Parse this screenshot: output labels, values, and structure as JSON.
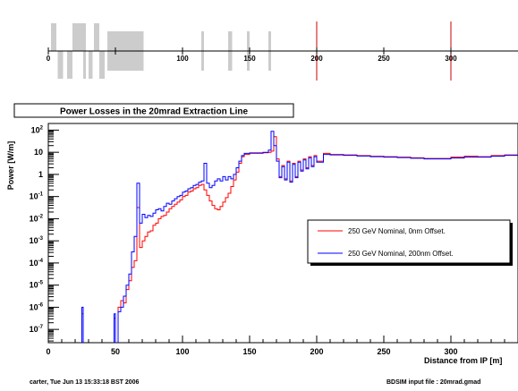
{
  "chart_data": [
    {
      "type": "diagram",
      "x_axis_range": [
        0,
        350
      ],
      "tick_labels": [
        "0",
        "100",
        "150",
        "200",
        "250",
        "300"
      ],
      "elements": [
        {
          "start": 2,
          "end": 6,
          "side": "up"
        },
        {
          "start": 7,
          "end": 11,
          "side": "down"
        },
        {
          "start": 14,
          "end": 18,
          "side": "down"
        },
        {
          "start": 18,
          "end": 23,
          "side": "up"
        },
        {
          "start": 23,
          "end": 28,
          "side": "up"
        },
        {
          "start": 26,
          "end": 28,
          "side": "down"
        },
        {
          "start": 30,
          "end": 33,
          "side": "down"
        },
        {
          "start": 34,
          "end": 38,
          "side": "up"
        },
        {
          "start": 38,
          "end": 42,
          "side": "down"
        },
        {
          "start": 44,
          "end": 71,
          "side": "both"
        },
        {
          "start": 114,
          "end": 116,
          "side": "both"
        },
        {
          "start": 134,
          "end": 137,
          "side": "both"
        },
        {
          "start": 148,
          "end": 150,
          "side": "both"
        },
        {
          "start": 164,
          "end": 166,
          "side": "both"
        }
      ],
      "markers": [
        200,
        300
      ],
      "marker_color": "#cc0000",
      "bar_color": "#cccccc"
    },
    {
      "type": "line",
      "title": "Power Losses in the 20mrad Extraction Line",
      "xlabel": "Distance from IP [m]",
      "ylabel": "Power [W/m]",
      "xlim": [
        0,
        350
      ],
      "ylim_log10": [
        -7.6,
        2.3
      ],
      "yscale": "log",
      "x_ticks": [
        0,
        50,
        100,
        150,
        200,
        250,
        300
      ],
      "y_ticks": [
        {
          "mant": "10",
          "exp": "2"
        },
        {
          "mant": "10",
          "exp": ""
        },
        {
          "mant": "1",
          "exp": ""
        },
        {
          "mant": "10",
          "exp": "-1"
        },
        {
          "mant": "10",
          "exp": "-2"
        },
        {
          "mant": "10",
          "exp": "-3"
        },
        {
          "mant": "10",
          "exp": "-4"
        },
        {
          "mant": "10",
          "exp": "-5"
        },
        {
          "mant": "10",
          "exp": "-6"
        },
        {
          "mant": "10",
          "exp": "-7"
        }
      ],
      "legend_position": "center-right",
      "series": [
        {
          "name": "250 GeV Nominal, 0nm Offset.",
          "color": "#ff0000",
          "points": [
            [
              24,
              -9
            ],
            [
              25,
              -6.3
            ],
            [
              26,
              -9
            ],
            [
              48,
              -9
            ],
            [
              49,
              -6.5
            ],
            [
              50,
              -9
            ],
            [
              52,
              -6
            ],
            [
              54,
              -5.7
            ],
            [
              56,
              -5.8
            ],
            [
              58,
              -5.2
            ],
            [
              60,
              -4.8
            ],
            [
              62,
              -4.2
            ],
            [
              64,
              -3.9
            ],
            [
              66,
              -1.5
            ],
            [
              68,
              -3.3
            ],
            [
              70,
              -3.0
            ],
            [
              72,
              -2.8
            ],
            [
              74,
              -2.6
            ],
            [
              76,
              -2.55
            ],
            [
              78,
              -2.3
            ],
            [
              80,
              -2.2
            ],
            [
              82,
              -2.0
            ],
            [
              84,
              -1.9
            ],
            [
              86,
              -1.85
            ],
            [
              88,
              -1.7
            ],
            [
              90,
              -1.55
            ],
            [
              92,
              -1.45
            ],
            [
              94,
              -1.35
            ],
            [
              96,
              -1.25
            ],
            [
              98,
              -1.15
            ],
            [
              100,
              -1.0
            ],
            [
              102,
              -0.95
            ],
            [
              104,
              -0.8
            ],
            [
              106,
              -0.75
            ],
            [
              108,
              -0.65
            ],
            [
              110,
              -0.6
            ],
            [
              112,
              -0.5
            ],
            [
              114,
              -0.45
            ],
            [
              116,
              -0.7
            ],
            [
              118,
              -0.95
            ],
            [
              120,
              -1.2
            ],
            [
              122,
              -1.4
            ],
            [
              124,
              -1.55
            ],
            [
              126,
              -1.6
            ],
            [
              128,
              -1.45
            ],
            [
              130,
              -1.25
            ],
            [
              132,
              -1.05
            ],
            [
              134,
              -0.85
            ],
            [
              136,
              -0.55
            ],
            [
              138,
              -0.25
            ],
            [
              140,
              0.1
            ],
            [
              142,
              0.5
            ],
            [
              144,
              0.8
            ],
            [
              146,
              0.9
            ],
            [
              150,
              0.95
            ],
            [
              160,
              0.98
            ],
            [
              164,
              1.0
            ],
            [
              166,
              1.05
            ],
            [
              168,
              1.7
            ],
            [
              170,
              0.7
            ],
            [
              172,
              -0.1
            ],
            [
              174,
              0.4
            ],
            [
              176,
              -0.2
            ],
            [
              178,
              0.6
            ],
            [
              180,
              -0.3
            ],
            [
              182,
              0.5
            ],
            [
              184,
              -0.1
            ],
            [
              186,
              0.6
            ],
            [
              188,
              0.2
            ],
            [
              190,
              0.7
            ],
            [
              192,
              0.3
            ],
            [
              194,
              0.8
            ],
            [
              196,
              0.4
            ],
            [
              198,
              0.85
            ],
            [
              200,
              0.6
            ],
            [
              205,
              0.95
            ],
            [
              210,
              0.9
            ],
            [
              220,
              0.88
            ],
            [
              230,
              0.85
            ],
            [
              240,
              0.82
            ],
            [
              250,
              0.8
            ],
            [
              260,
              0.78
            ],
            [
              270,
              0.75
            ],
            [
              280,
              0.72
            ],
            [
              290,
              0.72
            ],
            [
              300,
              0.78
            ],
            [
              310,
              0.82
            ],
            [
              320,
              0.8
            ],
            [
              330,
              0.85
            ],
            [
              340,
              0.88
            ],
            [
              350,
              0.9
            ]
          ]
        },
        {
          "name": "250 GeV Nominal, 200nm Offset.",
          "color": "#0000ff",
          "points": [
            [
              24,
              -9
            ],
            [
              25,
              -6.0
            ],
            [
              26,
              -9
            ],
            [
              48,
              -9
            ],
            [
              49,
              -6.3
            ],
            [
              50,
              -9
            ],
            [
              52,
              -6.2
            ],
            [
              54,
              -6.0
            ],
            [
              56,
              -5.5
            ],
            [
              58,
              -5.0
            ],
            [
              60,
              -4.5
            ],
            [
              62,
              -3.5
            ],
            [
              64,
              -2.8
            ],
            [
              66,
              -0.4
            ],
            [
              68,
              -2.2
            ],
            [
              70,
              -1.8
            ],
            [
              72,
              -1.95
            ],
            [
              74,
              -1.85
            ],
            [
              76,
              -1.9
            ],
            [
              78,
              -1.75
            ],
            [
              80,
              -1.6
            ],
            [
              82,
              -1.55
            ],
            [
              84,
              -1.65
            ],
            [
              86,
              -1.45
            ],
            [
              88,
              -1.3
            ],
            [
              90,
              -1.35
            ],
            [
              92,
              -1.2
            ],
            [
              94,
              -1.1
            ],
            [
              96,
              -1.0
            ],
            [
              98,
              -0.95
            ],
            [
              100,
              -0.8
            ],
            [
              102,
              -0.75
            ],
            [
              104,
              -0.65
            ],
            [
              106,
              -0.6
            ],
            [
              108,
              -0.5
            ],
            [
              110,
              -0.45
            ],
            [
              112,
              -0.35
            ],
            [
              114,
              -0.3
            ],
            [
              116,
              0.5
            ],
            [
              118,
              -0.4
            ],
            [
              120,
              -0.6
            ],
            [
              122,
              -0.5
            ],
            [
              124,
              -0.3
            ],
            [
              126,
              -0.2
            ],
            [
              128,
              -0.3
            ],
            [
              130,
              -0.1
            ],
            [
              132,
              -0.25
            ],
            [
              134,
              -0.1
            ],
            [
              136,
              -0.2
            ],
            [
              138,
              0.0
            ],
            [
              140,
              0.3
            ],
            [
              142,
              0.6
            ],
            [
              144,
              0.85
            ],
            [
              146,
              0.95
            ],
            [
              150,
              0.97
            ],
            [
              160,
              1.0
            ],
            [
              164,
              1.1
            ],
            [
              166,
              1.95
            ],
            [
              168,
              1.3
            ],
            [
              170,
              0.6
            ],
            [
              172,
              -0.15
            ],
            [
              174,
              0.35
            ],
            [
              176,
              -0.25
            ],
            [
              178,
              0.55
            ],
            [
              180,
              -0.35
            ],
            [
              182,
              0.45
            ],
            [
              184,
              -0.15
            ],
            [
              186,
              0.55
            ],
            [
              188,
              0.15
            ],
            [
              190,
              0.65
            ],
            [
              192,
              0.25
            ],
            [
              194,
              0.75
            ],
            [
              196,
              0.35
            ],
            [
              198,
              0.8
            ],
            [
              200,
              0.55
            ],
            [
              205,
              0.9
            ],
            [
              210,
              0.88
            ],
            [
              220,
              0.86
            ],
            [
              230,
              0.83
            ],
            [
              240,
              0.8
            ],
            [
              250,
              0.78
            ],
            [
              260,
              0.76
            ],
            [
              270,
              0.73
            ],
            [
              280,
              0.7
            ],
            [
              290,
              0.7
            ],
            [
              300,
              0.74
            ],
            [
              310,
              0.78
            ],
            [
              320,
              0.78
            ],
            [
              330,
              0.82
            ],
            [
              340,
              0.86
            ],
            [
              350,
              0.9
            ]
          ]
        }
      ]
    }
  ],
  "footer": {
    "left": "carter, Tue Jun 13 15:33:18 BST 2006",
    "right": "BDSIM input file : 20mrad.gmad"
  }
}
